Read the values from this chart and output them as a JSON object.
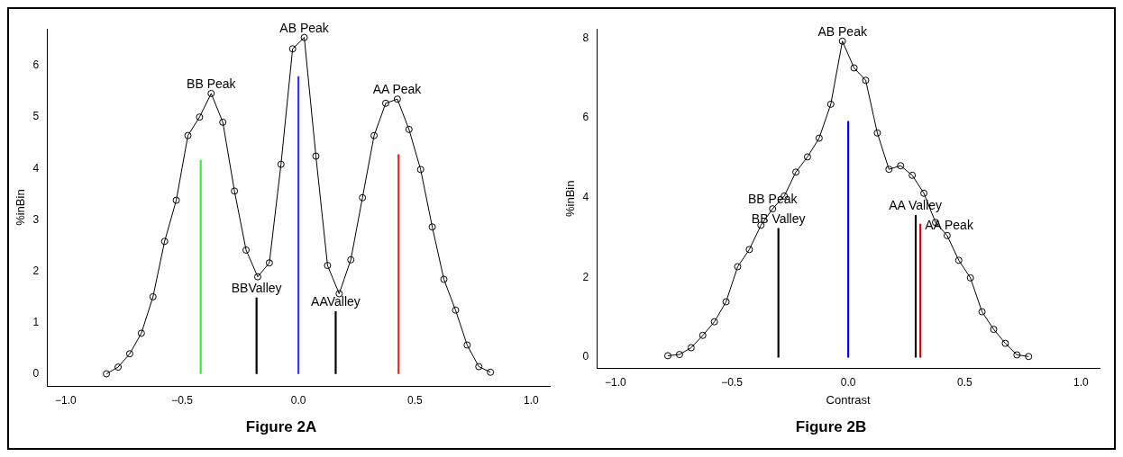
{
  "chart_data": [
    {
      "type": "line",
      "title": "Figure 2A",
      "ylabel": "%inBin",
      "marker": "circle",
      "line_style": "solid",
      "xlim": [
        -1.08,
        1.08
      ],
      "xticks": [
        {
          "value": -1,
          "label": "−1.0"
        },
        {
          "value": -0.5,
          "label": "−0.5"
        },
        {
          "value": 0,
          "label": "0.0"
        },
        {
          "value": 0.5,
          "label": "0.5"
        },
        {
          "value": 1,
          "label": "1.0"
        }
      ],
      "ylim": [
        -0.24,
        6.72
      ],
      "yticks": [
        0,
        1,
        2,
        3,
        4,
        5,
        6
      ],
      "series": [
        {
          "color": "#000000",
          "x": [
            -0.825,
            -0.775,
            -0.725,
            -0.675,
            -0.625,
            -0.575,
            -0.525,
            -0.475,
            -0.425,
            -0.375,
            -0.325,
            -0.275,
            -0.225,
            -0.175,
            -0.125,
            -0.075,
            -0.025,
            0.025,
            0.075,
            0.125,
            0.175,
            0.225,
            0.275,
            0.325,
            0.375,
            0.425,
            0.475,
            0.525,
            0.575,
            0.625,
            0.675,
            0.725,
            0.775,
            0.825
          ],
          "values": [
            0,
            0.13,
            0.39,
            0.79,
            1.5,
            2.58,
            3.38,
            4.64,
            5.0,
            5.46,
            4.9,
            3.56,
            2.41,
            1.89,
            2.16,
            4.08,
            6.33,
            6.55,
            4.24,
            2.11,
            1.56,
            2.22,
            3.43,
            4.64,
            5.27,
            5.35,
            4.76,
            3.98,
            2.86,
            1.84,
            1.24,
            0.56,
            0.14,
            0.03
          ]
        },
        {
          "type": "bar",
          "x": [
            -0.42,
            -0.18,
            0,
            0.16,
            0.43
          ],
          "values": [
            4.16,
            1.48,
            5.79,
            1.21,
            4.27
          ],
          "colors": [
            "#33ee33",
            "#000000",
            "#3333ff",
            "#000000",
            "#ff2222"
          ]
        }
      ],
      "annotations": [
        {
          "text": "BB Peak",
          "x": -0.375,
          "y": 5.46
        },
        {
          "text": "AB Peak",
          "x": 0.025,
          "y": 6.55
        },
        {
          "text": "AA Peak",
          "x": 0.425,
          "y": 5.35
        },
        {
          "text": "BBValley",
          "x": -0.18,
          "y": 1.48
        },
        {
          "text": "AAValley",
          "x": 0.16,
          "y": 1.21
        }
      ]
    },
    {
      "type": "line",
      "title": "Figure 2B",
      "xlabel": "Contrast",
      "ylabel": "%inBin",
      "marker": "circle",
      "line_style": "solid",
      "xlim": [
        -1.08,
        1.08
      ],
      "xticks": [
        {
          "value": -1,
          "label": "−1.0"
        },
        {
          "value": -0.5,
          "label": "−0.5"
        },
        {
          "value": 0,
          "label": "0.0"
        },
        {
          "value": 0.5,
          "label": "0.5"
        },
        {
          "value": 1,
          "label": "1.0"
        }
      ],
      "ylim": [
        -0.28,
        8.23
      ],
      "yticks": [
        0,
        2,
        4,
        6,
        8
      ],
      "series": [
        {
          "color": "#000000",
          "x": [
            -0.775,
            -0.725,
            -0.675,
            -0.625,
            -0.575,
            -0.525,
            -0.475,
            -0.425,
            -0.375,
            -0.325,
            -0.275,
            -0.225,
            -0.175,
            -0.125,
            -0.075,
            -0.025,
            0.025,
            0.075,
            0.125,
            0.175,
            0.225,
            0.275,
            0.325,
            0.375,
            0.425,
            0.475,
            0.525,
            0.575,
            0.625,
            0.675,
            0.725,
            0.775
          ],
          "values": [
            0.04,
            0.07,
            0.24,
            0.55,
            0.89,
            1.39,
            2.27,
            2.7,
            3.31,
            3.72,
            4.04,
            4.64,
            5.02,
            5.49,
            6.34,
            7.92,
            7.25,
            6.94,
            5.62,
            4.71,
            4.8,
            4.56,
            4.11,
            3.38,
            3.05,
            2.43,
            1.99,
            1.14,
            0.7,
            0.35,
            0.06,
            0.02
          ]
        },
        {
          "type": "bar",
          "x": [
            -0.3,
            0,
            0.29,
            0.31
          ],
          "values": [
            3.23,
            5.91,
            3.56,
            3.34
          ],
          "colors": [
            "#000000",
            "#0000ff",
            "#000000",
            "#cc0000"
          ]
        }
      ],
      "annotations": [
        {
          "text": "AB Peak",
          "x": -0.025,
          "y": 7.92
        },
        {
          "text": "BB Peak",
          "x": -0.325,
          "y": 3.72
        },
        {
          "text": "BB Valley",
          "x": -0.3,
          "y": 3.23
        },
        {
          "text": "AA Valley",
          "x": 0.29,
          "y": 3.56
        },
        {
          "text": "AA Peak",
          "x": 0.31,
          "y": 3.34
        }
      ]
    }
  ]
}
